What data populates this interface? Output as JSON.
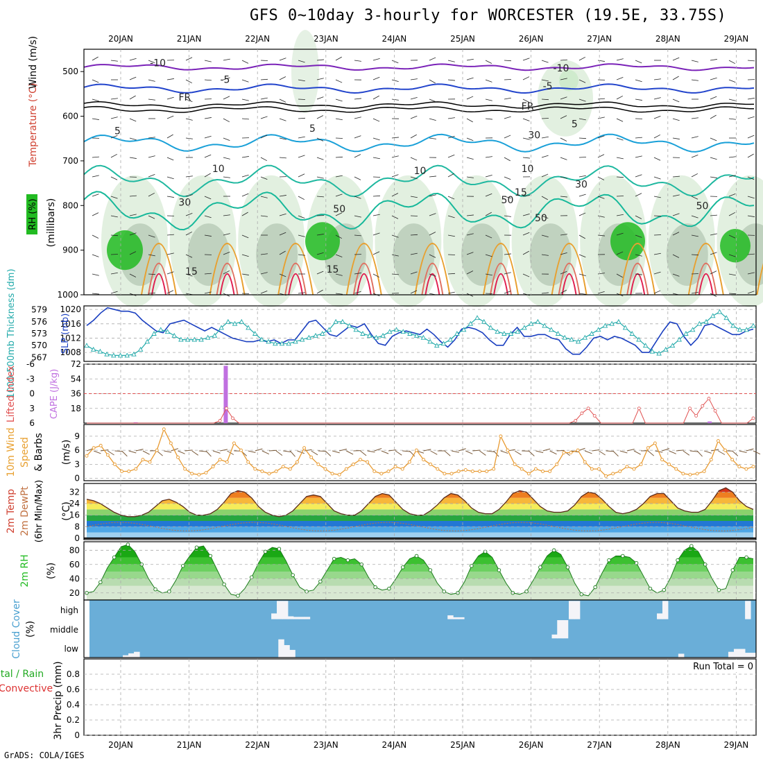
{
  "title": "GFS 0~10day 3-hourly for WORCESTER (19.5E, 33.75S)",
  "footer": "GrADS: COLA/IGES",
  "colors": {
    "frame": "#000000",
    "grid": "#aaaaaa",
    "cloud_bg": "#6aaed8",
    "rh_dark": "#22bb22",
    "slp": "#1a3fc0",
    "thick": "#22aaaa",
    "li": "#e05050",
    "cape": "#c070e0",
    "wind": "#e89a30"
  },
  "chart_data": [
    {
      "type": "contour",
      "name": "upper-air",
      "date_labels": [
        "20JAN",
        "21JAN",
        "22JAN",
        "23JAN",
        "24JAN",
        "25JAN",
        "26JAN",
        "27JAN",
        "28JAN",
        "29JAN"
      ],
      "y_label_parts": [
        "RH (%)",
        "Temperature (°C)",
        "Wind (m/s)"
      ],
      "y_unit_label": "(millibars)",
      "ylim": [
        1000,
        450
      ],
      "y_ticks": [
        500,
        600,
        700,
        800,
        900,
        1000
      ],
      "isotherm_labels": [
        {
          "text": "-10",
          "t": 0.11,
          "p": 488
        },
        {
          "text": "-10",
          "t": 0.71,
          "p": 500
        },
        {
          "text": "-5",
          "t": 0.21,
          "p": 525
        },
        {
          "text": "-5",
          "t": 0.69,
          "p": 540
        },
        {
          "text": "FR",
          "t": 0.15,
          "p": 565
        },
        {
          "text": "FR",
          "t": 0.66,
          "p": 585
        },
        {
          "text": "5",
          "t": 0.05,
          "p": 640
        },
        {
          "text": "5",
          "t": 0.34,
          "p": 635
        },
        {
          "text": "5",
          "t": 0.73,
          "p": 625
        },
        {
          "text": "10",
          "t": 0.2,
          "p": 725
        },
        {
          "text": "10",
          "t": 0.5,
          "p": 730
        },
        {
          "text": "15",
          "t": 0.65,
          "p": 778
        },
        {
          "text": "15",
          "t": 0.16,
          "p": 955
        },
        {
          "text": "15",
          "t": 0.37,
          "p": 950
        },
        {
          "text": "50",
          "t": 0.38,
          "p": 815
        },
        {
          "text": "30",
          "t": 0.74,
          "p": 760
        },
        {
          "text": "50",
          "t": 0.68,
          "p": 835
        },
        {
          "text": "50",
          "t": 0.92,
          "p": 808
        },
        {
          "text": "30",
          "t": 0.15,
          "p": 800
        },
        {
          "text": "50",
          "t": 0.63,
          "p": 795
        },
        {
          "text": "10",
          "t": 0.66,
          "p": 725
        },
        {
          "text": "30",
          "t": 0.67,
          "p": 650
        }
      ]
    },
    {
      "type": "line",
      "name": "slp-thickness",
      "y_label_left": "1000-500mb Thickness (dm)",
      "y_label_right": "SLP (mb)",
      "left_ticks": [
        567,
        570,
        573,
        576,
        579
      ],
      "right_ticks": [
        1008,
        1012,
        1016,
        1020
      ],
      "slp_lim": [
        1005.5,
        1021
      ],
      "thickness_lim": [
        566,
        580
      ],
      "series": [
        {
          "name": "SLP (mb)",
          "values": [
            1015.5,
            1017,
            1019,
            1020.5,
            1020,
            1019.5,
            1019.5,
            1019,
            1017,
            1015.5,
            1014,
            1013.5,
            1016,
            1016.5,
            1017,
            1016,
            1015,
            1014,
            1015,
            1014,
            1013,
            1012,
            1011.5,
            1011,
            1011,
            1011.5,
            1011,
            1011.5,
            1010.5,
            1011.5,
            1011.5,
            1014,
            1016.5,
            1017,
            1015,
            1013,
            1012.5,
            1014,
            1015.5,
            1015,
            1016,
            1013,
            1010.5,
            1010,
            1012.5,
            1013.5,
            1014,
            1013.5,
            1013,
            1014.5,
            1013,
            1011,
            1009.5,
            1011.5,
            1014.5,
            1015,
            1014.5,
            1013.5,
            1011.5,
            1010,
            1010,
            1013,
            1015,
            1012.5,
            1012.5,
            1013,
            1013,
            1012,
            1011.5,
            1009,
            1007.5,
            1007.5,
            1009.5,
            1012,
            1012.5,
            1011.5,
            1012.5,
            1012,
            1011,
            1010,
            1008,
            1008,
            1011,
            1014,
            1016.5,
            1016,
            1012.5,
            1010,
            1012,
            1015.5,
            1016,
            1015,
            1014,
            1013,
            1013,
            1014,
            1014.5
          ]
        },
        {
          "name": "1000-500mb Thickness (dm)",
          "values": [
            570,
            569,
            568.5,
            567.8,
            567.5,
            567.5,
            567.5,
            567.8,
            569,
            571,
            573,
            574,
            573.5,
            572.5,
            571.5,
            571.5,
            571.5,
            571.5,
            572,
            572.5,
            574.5,
            576,
            575.5,
            576,
            574.5,
            573,
            571.5,
            571,
            570.5,
            570.5,
            570.5,
            571,
            571.5,
            572,
            572.5,
            573,
            574,
            576,
            576,
            575,
            574,
            573,
            572.5,
            572,
            572.5,
            573.5,
            574,
            573.5,
            573,
            572.5,
            572,
            571,
            570,
            570.5,
            571.5,
            573,
            574,
            575.5,
            577,
            576,
            574.5,
            573.5,
            573,
            573,
            573.5,
            574.5,
            575.5,
            576,
            575,
            574,
            573,
            572,
            571.5,
            571,
            572,
            573,
            574,
            575,
            575.5,
            576,
            574.5,
            573,
            571.5,
            570,
            568.5,
            568,
            569,
            570,
            571.5,
            573,
            574,
            575.5,
            576,
            577.5,
            578.5,
            577,
            575,
            574,
            574,
            575
          ]
        }
      ]
    },
    {
      "type": "bar",
      "name": "cape-lifted-index",
      "y_label_left": "Lifted Index",
      "y_label_right": "CAPE (J/kg)",
      "li_ticks": [
        -6,
        -3,
        0,
        3,
        6
      ],
      "cape_ticks": [
        18,
        36,
        54,
        72
      ],
      "cape_lim": [
        0,
        72
      ],
      "li_lim": [
        6,
        -6
      ],
      "cape_bars": [
        {
          "t": 0.077,
          "value": 1
        },
        {
          "t": 0.211,
          "value": 70
        },
        {
          "t": 0.931,
          "value": 2
        }
      ],
      "li_values": [
        12,
        12,
        12,
        12,
        12,
        12,
        12,
        12,
        12,
        12,
        12,
        6.5,
        12,
        12,
        12,
        12,
        12,
        12,
        12,
        12,
        8,
        5.5,
        3,
        5,
        9,
        10,
        12,
        12,
        12,
        6.5,
        12,
        12,
        12,
        12,
        12,
        12,
        12,
        12,
        12,
        12,
        12,
        12,
        12,
        12,
        12,
        12,
        12,
        12,
        12,
        12,
        12,
        6.5,
        6,
        12,
        12,
        12,
        12,
        12,
        12,
        12,
        12,
        12,
        12,
        12,
        6.5,
        12,
        12,
        12,
        12,
        12,
        12,
        12,
        12,
        12,
        12,
        9,
        7,
        5.5,
        4,
        3,
        4.5,
        12,
        12,
        12,
        12,
        12,
        6.5,
        3,
        6,
        12,
        12,
        12,
        12,
        12,
        6.5,
        3,
        4.5,
        2.5,
        1,
        3.5,
        6,
        8,
        9,
        8,
        6.5,
        5
      ]
    },
    {
      "type": "line",
      "name": "wind-10m",
      "y_label": "10m Wind Speed & Barbs (m/s)",
      "y_ticks": [
        0,
        3,
        6,
        9
      ],
      "ylim": [
        -0.5,
        11.5
      ],
      "values": [
        4.8,
        6.5,
        7,
        5,
        3,
        1.5,
        1.5,
        2,
        4,
        3.5,
        6,
        10.5,
        7.5,
        4.5,
        2,
        1,
        0.8,
        1.2,
        2.5,
        4,
        3.5,
        7.5,
        6,
        3.5,
        2,
        1.5,
        1,
        1.5,
        2.5,
        2,
        3.5,
        6.5,
        4.5,
        3,
        2,
        1,
        0.8,
        2,
        3,
        4,
        3.5,
        1.5,
        1,
        1.5,
        2.5,
        2,
        3.5,
        6,
        4,
        3,
        2,
        1,
        1,
        1.5,
        1.8,
        1.5,
        1.5,
        1.5,
        2,
        9,
        6,
        3,
        2,
        1,
        2,
        1.5,
        1.5,
        3,
        5.5,
        5.5,
        6,
        3.5,
        2,
        2,
        0.5,
        1,
        1.5,
        2.5,
        2,
        3,
        6.5,
        7.5,
        4,
        3,
        2,
        1,
        0.8,
        1,
        1.5,
        4,
        8,
        6,
        4,
        2.5,
        2,
        2.5
      ]
    },
    {
      "type": "area",
      "name": "temperature-2m",
      "y_label": "2m Temp 2m DewPt (6hr Min/Max) (°C)",
      "y_ticks": [
        0,
        8,
        16,
        24,
        32
      ],
      "ylim": [
        -1,
        38
      ],
      "temp": [
        27,
        26,
        24,
        21,
        18,
        16,
        15,
        15,
        16,
        18,
        22,
        26,
        27,
        25,
        22,
        18,
        16,
        16,
        17,
        20,
        25,
        31,
        33,
        32,
        28,
        22,
        18,
        16,
        15,
        16,
        19,
        24,
        29,
        30,
        29,
        24,
        19,
        17,
        16,
        16,
        19,
        24,
        29,
        31,
        30,
        25,
        20,
        17,
        16,
        16,
        19,
        23,
        28,
        31,
        30,
        26,
        21,
        18,
        17,
        17,
        20,
        25,
        31,
        33,
        32,
        27,
        22,
        19,
        18,
        18,
        19,
        23,
        29,
        32,
        31,
        27,
        22,
        18,
        17,
        18,
        20,
        24,
        29,
        31,
        31,
        26,
        21,
        19,
        18,
        18,
        20,
        26,
        33,
        35,
        32,
        26,
        22,
        20
      ]
    },
    {
      "type": "area",
      "name": "relative-humidity-2m",
      "y_label": "2m RH (%)",
      "y_ticks": [
        20,
        40,
        60,
        80
      ],
      "ylim": [
        10,
        92
      ],
      "values": [
        20,
        22,
        35,
        55,
        70,
        85,
        88,
        78,
        60,
        40,
        25,
        20,
        22,
        38,
        58,
        72,
        84,
        86,
        72,
        52,
        32,
        18,
        16,
        26,
        42,
        62,
        78,
        84,
        82,
        65,
        45,
        28,
        22,
        24,
        36,
        52,
        68,
        70,
        66,
        68,
        60,
        42,
        28,
        24,
        26,
        40,
        56,
        68,
        72,
        66,
        52,
        34,
        22,
        18,
        20,
        36,
        58,
        72,
        78,
        70,
        52,
        34,
        20,
        18,
        22,
        38,
        56,
        72,
        80,
        74,
        56,
        34,
        18,
        16,
        28,
        48,
        66,
        72,
        72,
        70,
        62,
        44,
        26,
        20,
        24,
        42,
        66,
        80,
        86,
        78,
        60,
        40,
        24,
        26,
        52,
        70,
        70,
        68
      ]
    },
    {
      "type": "area",
      "name": "cloud-cover",
      "y_label": "Cloud Cover (%)",
      "levels": [
        "high",
        "middle",
        "low"
      ],
      "high_values": [
        0,
        0,
        0,
        0,
        0,
        0,
        0,
        0,
        0,
        0,
        0,
        0,
        0,
        0,
        0,
        0,
        0,
        0,
        0,
        0,
        0,
        0,
        0,
        0,
        0,
        0,
        0,
        0,
        0,
        0,
        0,
        0,
        0,
        30,
        95,
        95,
        15,
        12,
        12,
        12,
        0,
        0,
        0,
        0,
        0,
        0,
        0,
        0,
        0,
        0,
        0,
        0,
        0,
        0,
        0,
        0,
        0,
        0,
        0,
        0,
        0,
        0,
        0,
        0,
        0,
        20,
        10,
        10,
        0,
        0,
        0,
        0,
        0,
        0,
        0,
        0,
        0,
        0,
        0,
        0,
        0,
        0,
        0,
        0,
        0,
        0,
        0,
        95,
        95,
        0,
        0,
        0,
        0,
        0,
        0,
        0,
        0,
        0,
        0,
        0,
        0,
        0,
        0,
        30,
        95,
        0,
        0,
        0,
        0,
        0,
        0,
        0,
        0,
        0,
        0,
        0,
        0,
        0,
        0,
        95,
        0
      ],
      "mid_values": [
        0,
        0,
        0,
        0,
        0,
        0,
        0,
        0,
        0,
        0,
        0,
        0,
        0,
        0,
        0,
        0,
        0,
        0,
        0,
        0,
        0,
        0,
        0,
        0,
        0,
        0,
        0,
        0,
        0,
        0,
        0,
        0,
        0,
        0,
        0,
        0,
        0,
        0,
        0,
        0,
        0,
        0,
        0,
        0,
        0,
        0,
        0,
        0,
        0,
        0,
        0,
        0,
        0,
        0,
        0,
        0,
        0,
        0,
        0,
        0,
        0,
        0,
        0,
        0,
        0,
        0,
        0,
        0,
        0,
        0,
        0,
        0,
        0,
        0,
        0,
        0,
        0,
        0,
        0,
        0,
        0,
        0,
        0,
        0,
        0,
        0,
        20,
        95,
        95,
        0,
        0,
        0,
        0,
        0,
        0,
        0,
        0,
        0,
        0,
        0,
        0,
        0,
        0,
        0,
        0,
        0,
        0,
        0,
        0,
        0,
        0,
        0,
        0,
        0,
        0,
        0,
        0,
        0,
        0,
        0,
        0,
        0,
        0,
        0
      ],
      "low_values": [
        0,
        0,
        0,
        0,
        0,
        0,
        12,
        22,
        30,
        0,
        0,
        0,
        0,
        0,
        0,
        0,
        0,
        0,
        0,
        0,
        0,
        0,
        0,
        0,
        0,
        0,
        0,
        0,
        0,
        0,
        0,
        0,
        0,
        0,
        95,
        65,
        40,
        0,
        0,
        0,
        0,
        0,
        0,
        0,
        0,
        0,
        0,
        0,
        0,
        0,
        0,
        0,
        0,
        0,
        0,
        0,
        0,
        0,
        0,
        0,
        0,
        0,
        0,
        0,
        0,
        0,
        0,
        0,
        0,
        0,
        0,
        0,
        0,
        0,
        0,
        0,
        0,
        0,
        0,
        0,
        0,
        0,
        0,
        0,
        0,
        0,
        0,
        0,
        0,
        0,
        0,
        0,
        0,
        0,
        0,
        0,
        0,
        0,
        0,
        0,
        0,
        0,
        0,
        0,
        0,
        0,
        20,
        0,
        0,
        0,
        0,
        0,
        0,
        0,
        0,
        30,
        45,
        45,
        25,
        25
      ]
    },
    {
      "type": "bar",
      "name": "precipitation-3hr",
      "y_label": "3hr Precip (mm)",
      "legend_parts": [
        "Total / Rain",
        "Convective"
      ],
      "run_total_label": "Run Total = 0",
      "y_ticks": [
        "0",
        "0.2",
        "0.4",
        "0.6",
        "0.8"
      ],
      "ylim": [
        0,
        1
      ],
      "values": []
    }
  ]
}
